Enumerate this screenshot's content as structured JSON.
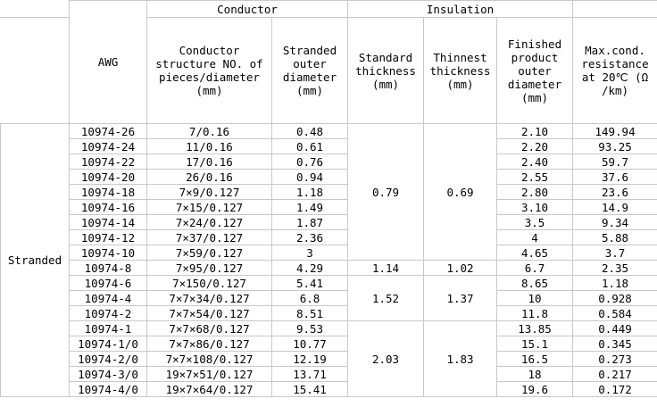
{
  "headers": {
    "awg": "AWG",
    "conductor": "Conductor",
    "insulation": "Insulation",
    "conductor_structure": "Conductor structure NO. of pieces/diameter (mm)",
    "stranded_outer_diameter": "Stranded outer diameter (mm)",
    "standard_thickness": "Standard thickness (mm)",
    "thinnest_thickness": "Thinnest thickness (mm)",
    "finished_outer_diameter": "Finished product outer diameter (mm)",
    "max_resistance": "Max.cond. resistance at 20℃ (Ω /km)"
  },
  "type_label": "Stranded",
  "insulation_groups": [
    {
      "standard": "0.79",
      "thinnest": "0.69"
    },
    {
      "standard": "1.14",
      "thinnest": "1.02"
    },
    {
      "standard": "1.52",
      "thinnest": "1.37"
    },
    {
      "standard": "2.03",
      "thinnest": "1.83"
    }
  ],
  "rows": [
    {
      "awg": "10974-26",
      "structure": "7/0.16",
      "stranded": "0.48",
      "finished": "2.10",
      "resistance": "149.94"
    },
    {
      "awg": "10974-24",
      "structure": "11/0.16",
      "stranded": "0.61",
      "finished": "2.20",
      "resistance": "93.25"
    },
    {
      "awg": "10974-22",
      "structure": "17/0.16",
      "stranded": "0.76",
      "finished": "2.40",
      "resistance": "59.7"
    },
    {
      "awg": "10974-20",
      "structure": "26/0.16",
      "stranded": "0.94",
      "finished": "2.55",
      "resistance": "37.6"
    },
    {
      "awg": "10974-18",
      "structure": "7×9/0.127",
      "stranded": "1.18",
      "finished": "2.80",
      "resistance": "23.6"
    },
    {
      "awg": "10974-16",
      "structure": "7×15/0.127",
      "stranded": "1.49",
      "finished": "3.10",
      "resistance": "14.9"
    },
    {
      "awg": "10974-14",
      "structure": "7×24/0.127",
      "stranded": "1.87",
      "finished": "3.5",
      "resistance": "9.34"
    },
    {
      "awg": "10974-12",
      "structure": "7×37/0.127",
      "stranded": "2.36",
      "finished": "4",
      "resistance": "5.88"
    },
    {
      "awg": "10974-10",
      "structure": "7×59/0.127",
      "stranded": "3",
      "finished": "4.65",
      "resistance": "3.7"
    },
    {
      "awg": "10974-8",
      "structure": "7×95/0.127",
      "stranded": "4.29",
      "finished": "6.7",
      "resistance": "2.35"
    },
    {
      "awg": "10974-6",
      "structure": "7×150/0.127",
      "stranded": "5.41",
      "finished": "8.65",
      "resistance": "1.18"
    },
    {
      "awg": "10974-4",
      "structure": "7×7×34/0.127",
      "stranded": "6.8",
      "finished": "10",
      "resistance": "0.928"
    },
    {
      "awg": "10974-2",
      "structure": "7×7×54/0.127",
      "stranded": "8.51",
      "finished": "11.8",
      "resistance": "0.584"
    },
    {
      "awg": "10974-1",
      "structure": "7×7×68/0.127",
      "stranded": "9.53",
      "finished": "13.85",
      "resistance": "0.449"
    },
    {
      "awg": "10974-1/0",
      "structure": "7×7×86/0.127",
      "stranded": "10.77",
      "finished": "15.1",
      "resistance": "0.345"
    },
    {
      "awg": "10974-2/0",
      "structure": "7×7×108/0.127",
      "stranded": "12.19",
      "finished": "16.5",
      "resistance": "0.273"
    },
    {
      "awg": "10974-3/0",
      "structure": "19×7×51/0.127",
      "stranded": "13.71",
      "finished": "18",
      "resistance": "0.217"
    },
    {
      "awg": "10974-4/0",
      "structure": "19×7×64/0.127",
      "stranded": "15.41",
      "finished": "19.6",
      "resistance": "0.172"
    }
  ]
}
